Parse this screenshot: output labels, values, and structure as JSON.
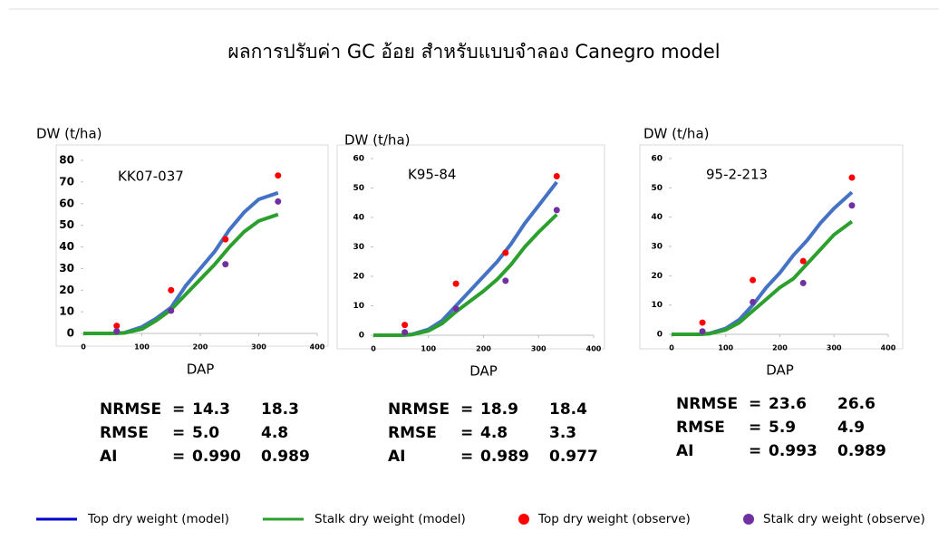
{
  "title": "ผลการปรับค่า GC อ้อย สำหรับแบบจำลอง Canegro model",
  "chart_data": [
    {
      "type": "line",
      "ylabel": "DW (t/ha)",
      "xlabel": "DAP",
      "annotation": "KK07-037",
      "xlim": [
        0,
        400
      ],
      "xticks": [
        0,
        100,
        200,
        300,
        400
      ],
      "ylim": [
        0,
        80
      ],
      "yticks": [
        0,
        10,
        20,
        30,
        40,
        50,
        60,
        70,
        80
      ],
      "series": [
        {
          "style": "line",
          "color": "#4472c4",
          "x": [
            0,
            25,
            50,
            70,
            100,
            125,
            150,
            175,
            200,
            225,
            250,
            275,
            300,
            333
          ],
          "values": [
            0,
            0,
            0,
            0.3,
            3,
            7,
            12,
            22,
            30,
            38,
            48,
            56,
            62,
            65
          ]
        },
        {
          "style": "line",
          "color": "#2ca02c",
          "x": [
            0,
            25,
            50,
            70,
            100,
            125,
            150,
            175,
            200,
            225,
            250,
            275,
            300,
            333
          ],
          "values": [
            0,
            0,
            0,
            0.2,
            2,
            6,
            11,
            18,
            25,
            32,
            40,
            47,
            52,
            55
          ]
        },
        {
          "style": "markers",
          "color": "#ff0000",
          "x": [
            57,
            150,
            243,
            333
          ],
          "values": [
            3.5,
            20,
            43.5,
            73
          ]
        },
        {
          "style": "markers",
          "color": "#7030a0",
          "x": [
            57,
            150,
            243,
            333
          ],
          "values": [
            1,
            10.5,
            32,
            61
          ]
        }
      ],
      "stats": [
        [
          "NRMSE",
          "=",
          "14.3",
          "18.3"
        ],
        [
          "RMSE",
          "=",
          "5.0",
          "4.8"
        ],
        [
          "AI",
          "=",
          "0.990",
          "0.989"
        ]
      ]
    },
    {
      "type": "line",
      "ylabel": "DW (t/ha)",
      "xlabel": "DAP",
      "annotation": "K95-84",
      "xlim": [
        0,
        400
      ],
      "xticks": [
        0,
        100,
        200,
        300,
        400
      ],
      "ylim": [
        0,
        60
      ],
      "yticks": [
        0,
        10,
        20,
        30,
        40,
        50,
        60
      ],
      "series": [
        {
          "style": "line",
          "color": "#4472c4",
          "x": [
            0,
            25,
            50,
            70,
            100,
            125,
            150,
            175,
            200,
            225,
            250,
            275,
            300,
            333
          ],
          "values": [
            0,
            0,
            0,
            0.3,
            2,
            5,
            10,
            15,
            20,
            25,
            31,
            38,
            44,
            52
          ]
        },
        {
          "style": "line",
          "color": "#2ca02c",
          "x": [
            0,
            25,
            50,
            70,
            100,
            125,
            150,
            175,
            200,
            225,
            250,
            275,
            300,
            333
          ],
          "values": [
            0,
            0,
            0,
            0.2,
            1.5,
            4,
            8,
            11.5,
            15,
            19,
            24,
            30,
            35,
            41
          ]
        },
        {
          "style": "markers",
          "color": "#ff0000",
          "x": [
            57,
            150,
            240,
            333
          ],
          "values": [
            3.5,
            17.5,
            28,
            54
          ]
        },
        {
          "style": "markers",
          "color": "#7030a0",
          "x": [
            57,
            150,
            240,
            333
          ],
          "values": [
            1,
            9,
            18.5,
            42.5
          ]
        }
      ],
      "stats": [
        [
          "NRMSE",
          "=",
          "18.9",
          "18.4"
        ],
        [
          "RMSE",
          "=",
          "4.8",
          "3.3"
        ],
        [
          "AI",
          "=",
          "0.989",
          "0.977"
        ]
      ]
    },
    {
      "type": "line",
      "ylabel": "DW (t/ha)",
      "xlabel": "DAP",
      "annotation": "95-2-213",
      "xlim": [
        0,
        400
      ],
      "xticks": [
        0,
        100,
        200,
        300,
        400
      ],
      "ylim": [
        0,
        60
      ],
      "yticks": [
        0,
        10,
        20,
        30,
        40,
        50,
        60
      ],
      "series": [
        {
          "style": "line",
          "color": "#4472c4",
          "x": [
            0,
            25,
            50,
            70,
            100,
            125,
            150,
            175,
            200,
            225,
            250,
            275,
            300,
            333
          ],
          "values": [
            0,
            0,
            0,
            0.3,
            2,
            5,
            10,
            16,
            21,
            27,
            32,
            38,
            43,
            48.5
          ]
        },
        {
          "style": "line",
          "color": "#2ca02c",
          "x": [
            0,
            25,
            50,
            70,
            100,
            125,
            150,
            175,
            200,
            225,
            250,
            275,
            300,
            333
          ],
          "values": [
            0,
            0,
            0,
            0.2,
            1.5,
            4,
            8,
            12,
            16,
            19,
            24,
            29,
            34,
            38.5
          ]
        },
        {
          "style": "markers",
          "color": "#ff0000",
          "x": [
            57,
            150,
            243,
            333
          ],
          "values": [
            4,
            18.5,
            25,
            53.5
          ]
        },
        {
          "style": "markers",
          "color": "#7030a0",
          "x": [
            57,
            150,
            243,
            333
          ],
          "values": [
            1,
            11,
            17.5,
            44
          ]
        }
      ],
      "stats": [
        [
          "NRMSE",
          "=",
          "23.6",
          "26.6"
        ],
        [
          "RMSE",
          "=",
          "5.9",
          "4.9"
        ],
        [
          "AI",
          "=",
          "0.993",
          "0.989"
        ]
      ]
    }
  ],
  "stat_colors": [
    "#0000ff",
    "#2ca02c"
  ],
  "legend": [
    {
      "name": "Top dry weight (model)",
      "color": "#0000cc",
      "kind": "line"
    },
    {
      "name": "Stalk dry weight (model)",
      "color": "#2ca02c",
      "kind": "line"
    },
    {
      "name": "Top dry weight (observe)",
      "color": "#ff0000",
      "kind": "dot"
    },
    {
      "name": "Stalk dry weight (observe)",
      "color": "#7030a0",
      "kind": "dot"
    }
  ]
}
